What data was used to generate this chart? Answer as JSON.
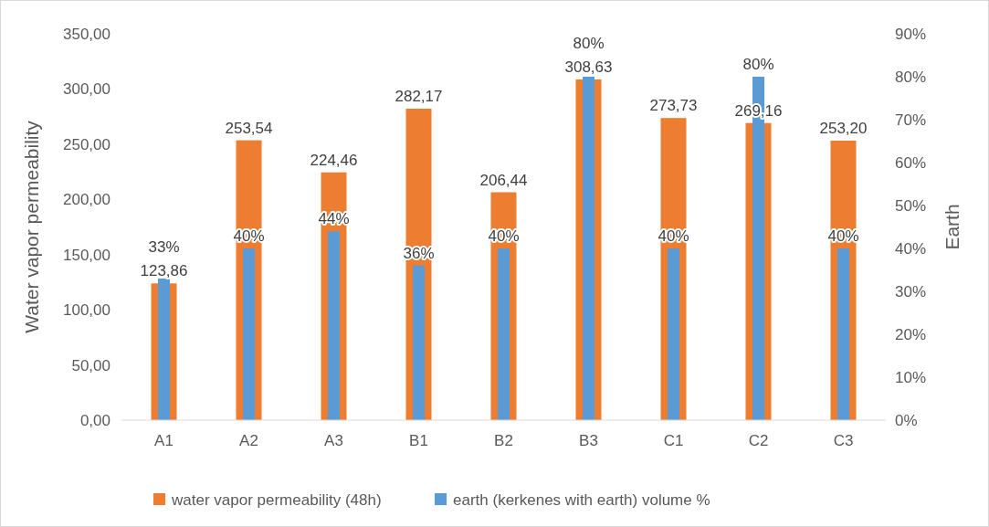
{
  "chart_data": {
    "type": "bar",
    "categories": [
      "A1",
      "A2",
      "A3",
      "B1",
      "B2",
      "B3",
      "C1",
      "C2",
      "C3"
    ],
    "ylabel": "Water vapor permeability",
    "y2label": "Earth",
    "ylim": [
      0,
      350
    ],
    "yticks": [
      {
        "value": 0,
        "label": "0,00"
      },
      {
        "value": 50,
        "label": "50,00"
      },
      {
        "value": 100,
        "label": "100,00"
      },
      {
        "value": 150,
        "label": "150,00"
      },
      {
        "value": 200,
        "label": "200,00"
      },
      {
        "value": 250,
        "label": "250,00"
      },
      {
        "value": 300,
        "label": "300,00"
      },
      {
        "value": 350,
        "label": "350,00"
      }
    ],
    "y2lim": [
      0,
      90
    ],
    "y2ticks": [
      {
        "value": 0,
        "label": "0%"
      },
      {
        "value": 10,
        "label": "10%"
      },
      {
        "value": 20,
        "label": "20%"
      },
      {
        "value": 30,
        "label": "30%"
      },
      {
        "value": 40,
        "label": "40%"
      },
      {
        "value": 50,
        "label": "50%"
      },
      {
        "value": 60,
        "label": "60%"
      },
      {
        "value": 70,
        "label": "70%"
      },
      {
        "value": 80,
        "label": "80%"
      },
      {
        "value": 90,
        "label": "90%"
      }
    ],
    "series": [
      {
        "name": "water vapor permeability (48h)",
        "color": "#ed7d31",
        "values": [
          123.86,
          253.54,
          224.46,
          282.17,
          206.44,
          308.63,
          273.73,
          269.16,
          253.2
        ],
        "value_labels": [
          "123,86",
          "253,54",
          "224,46",
          "282,17",
          "206,44",
          "308,63",
          "273,73",
          "269,16",
          "253,20"
        ]
      },
      {
        "name": "earth (kerkenes with earth) volume %",
        "color": "#5b9bd5",
        "axis": "y2",
        "values": [
          33,
          40,
          44,
          36,
          40,
          80,
          40,
          80,
          40
        ],
        "value_labels": [
          "33%",
          "40%",
          "44%",
          "36%",
          "40%",
          "80%",
          "40%",
          "80%",
          "40%"
        ]
      }
    ],
    "grid": false,
    "legend": "bottom"
  }
}
